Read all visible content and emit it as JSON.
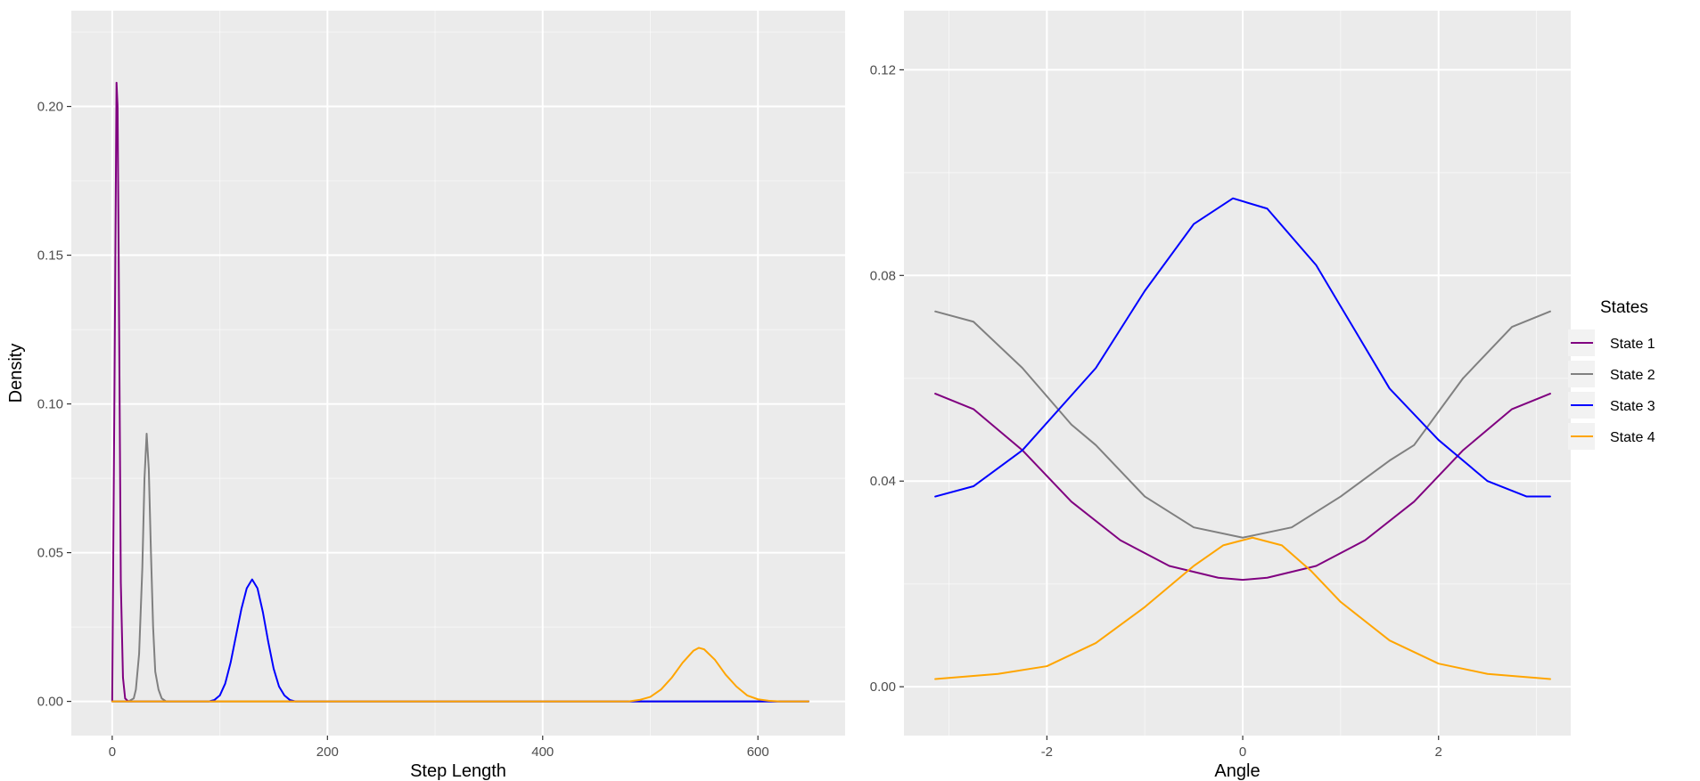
{
  "chart_data": [
    {
      "type": "line",
      "xlabel": "Step Length",
      "ylabel": "Density",
      "xlim": [
        -38,
        681
      ],
      "ylim": [
        -0.0115,
        0.2322
      ],
      "xticks": [
        0,
        200,
        400,
        600
      ],
      "xtick_labels": [
        "0",
        "200",
        "400",
        "600"
      ],
      "yticks": [
        0,
        0.05,
        0.1,
        0.15,
        0.2
      ],
      "ytick_labels": [
        "0.00",
        "0.05",
        "0.10",
        "0.15",
        "0.20"
      ],
      "grid": true,
      "series": [
        {
          "name": "State 1",
          "color": "#800080",
          "x": [
            0,
            2,
            4,
            5,
            6,
            8,
            10,
            12,
            15,
            20,
            30,
            100,
            200,
            400,
            600,
            647
          ],
          "y": [
            0,
            0.1,
            0.208,
            0.2,
            0.15,
            0.04,
            0.008,
            0.001,
            0,
            0,
            0,
            0,
            0,
            0,
            0,
            0
          ]
        },
        {
          "name": "State 2",
          "color": "#808080",
          "x": [
            0,
            15,
            20,
            22,
            25,
            28,
            30,
            32,
            34,
            36,
            38,
            40,
            43,
            46,
            50,
            55,
            100,
            300,
            647
          ],
          "y": [
            0,
            0,
            0.001,
            0.004,
            0.016,
            0.045,
            0.075,
            0.09,
            0.078,
            0.05,
            0.025,
            0.01,
            0.004,
            0.001,
            0,
            0,
            0,
            0,
            0
          ]
        },
        {
          "name": "State 3",
          "color": "#0000ff",
          "x": [
            0,
            90,
            95,
            100,
            105,
            110,
            115,
            120,
            125,
            130,
            135,
            140,
            145,
            150,
            155,
            160,
            165,
            170,
            300,
            647
          ],
          "y": [
            0,
            0,
            0.0005,
            0.002,
            0.006,
            0.013,
            0.022,
            0.031,
            0.038,
            0.041,
            0.038,
            0.03,
            0.02,
            0.011,
            0.005,
            0.002,
            0.0005,
            0,
            0,
            0
          ]
        },
        {
          "name": "State 4",
          "color": "#ffa500",
          "x": [
            0,
            480,
            490,
            500,
            510,
            520,
            530,
            540,
            545,
            550,
            560,
            570,
            580,
            590,
            600,
            610,
            620,
            647
          ],
          "y": [
            0,
            0,
            0.0005,
            0.0015,
            0.004,
            0.008,
            0.013,
            0.017,
            0.018,
            0.0175,
            0.014,
            0.009,
            0.005,
            0.002,
            0.0007,
            0.0002,
            0,
            0
          ]
        }
      ]
    },
    {
      "type": "line",
      "xlabel": "Angle",
      "ylabel": "",
      "xlim": [
        -3.46,
        3.35
      ],
      "ylim": [
        -0.0095,
        0.1315
      ],
      "xticks": [
        -2,
        0,
        2
      ],
      "xtick_labels": [
        "-2",
        "0",
        "2"
      ],
      "yticks": [
        0,
        0.04,
        0.08,
        0.12
      ],
      "ytick_labels": [
        "0.00",
        "0.04",
        "0.08",
        "0.12"
      ],
      "grid": true,
      "series": [
        {
          "name": "State 1",
          "color": "#800080",
          "x": [
            -3.14,
            -2.75,
            -2.25,
            -1.75,
            -1.25,
            -0.75,
            -0.25,
            0,
            0.25,
            0.75,
            1.25,
            1.75,
            2.25,
            2.75,
            3.14
          ],
          "y": [
            0.057,
            0.054,
            0.046,
            0.036,
            0.0285,
            0.0235,
            0.0212,
            0.0208,
            0.0212,
            0.0235,
            0.0285,
            0.036,
            0.046,
            0.054,
            0.057
          ]
        },
        {
          "name": "State 2",
          "color": "#808080",
          "x": [
            -3.14,
            -2.75,
            -2.25,
            -1.75,
            -1.5,
            -1.0,
            -0.5,
            0,
            0.5,
            1.0,
            1.5,
            1.75,
            2.25,
            2.75,
            3.14
          ],
          "y": [
            0.073,
            0.071,
            0.062,
            0.051,
            0.047,
            0.037,
            0.031,
            0.029,
            0.031,
            0.037,
            0.044,
            0.047,
            0.06,
            0.07,
            0.073
          ]
        },
        {
          "name": "State 3",
          "color": "#0000ff",
          "x": [
            -3.14,
            -2.75,
            -2.25,
            -1.5,
            -1.0,
            -0.5,
            -0.1,
            0.25,
            0.75,
            1.0,
            1.5,
            2.0,
            2.5,
            2.9,
            3.14
          ],
          "y": [
            0.037,
            0.039,
            0.046,
            0.062,
            0.077,
            0.09,
            0.095,
            0.093,
            0.082,
            0.074,
            0.058,
            0.048,
            0.04,
            0.037,
            0.037
          ]
        },
        {
          "name": "State 4",
          "color": "#ffa500",
          "x": [
            -3.14,
            -2.5,
            -2.0,
            -1.5,
            -1.0,
            -0.5,
            -0.2,
            0.1,
            0.4,
            0.7,
            1.0,
            1.5,
            2.0,
            2.5,
            3.14
          ],
          "y": [
            0.0015,
            0.0025,
            0.004,
            0.0085,
            0.0155,
            0.0235,
            0.0275,
            0.029,
            0.0275,
            0.0225,
            0.0165,
            0.009,
            0.0045,
            0.0025,
            0.0015
          ]
        }
      ]
    }
  ],
  "legend": {
    "title": "States",
    "items": [
      {
        "label": "State 1",
        "color": "#800080"
      },
      {
        "label": "State 2",
        "color": "#808080"
      },
      {
        "label": "State 3",
        "color": "#0000ff"
      },
      {
        "label": "State 4",
        "color": "#ffa500"
      }
    ]
  },
  "colors": {
    "panel": "#ebebeb",
    "grid": "#ffffff",
    "tick": "#333333"
  }
}
